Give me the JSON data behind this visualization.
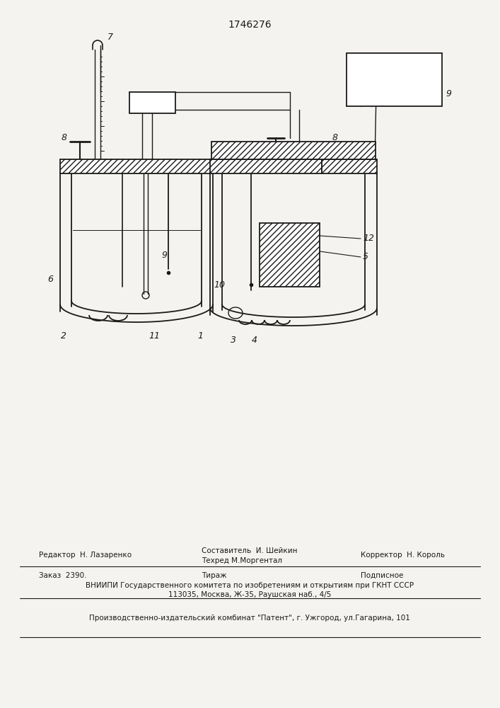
{
  "title": "1746276",
  "bg_color": "#f5f3ef",
  "line_color": "#1a1a1a",
  "footer_col1_line1": "Редактор  Н. Лазаренко",
  "footer_col2_line1a": "Составитель  И. Шейкин",
  "footer_col2_line1b": "Техред М.Моргентал",
  "footer_col3_line1": "Корректор  Н. Король",
  "footer_col1_line2": "Заказ  2390.",
  "footer_col2_line2": "Тираж",
  "footer_col3_line2": "Подписное",
  "footer_line3": "ВНИИПИ Государственного комитета по изобретениям и открытиям при ГКНТ СССР",
  "footer_line4": "113035, Москва, Ж-35, Раушская наб., 4/5",
  "footer_line5": "Производственно-издательский комбинат \"Патент\", г. Ужгород, ул.Гагарина, 101"
}
